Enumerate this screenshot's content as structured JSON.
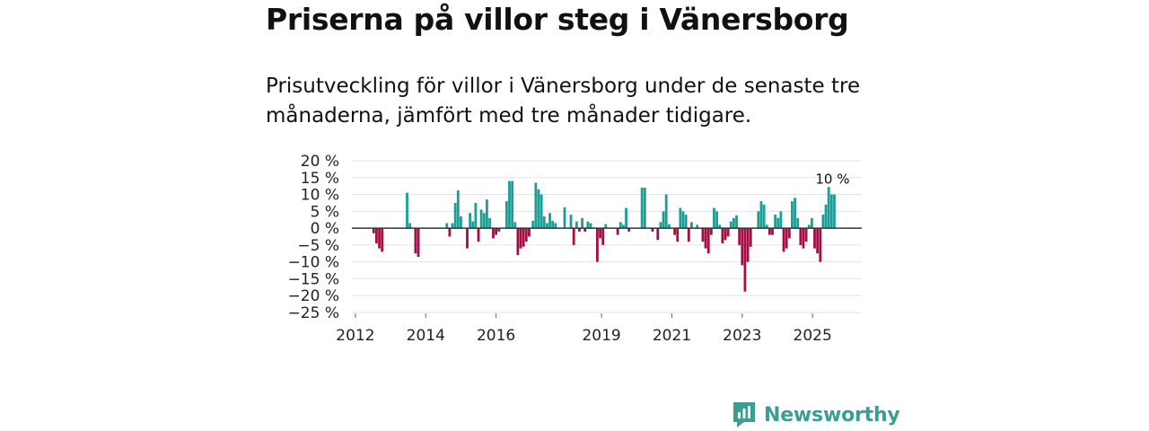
{
  "header": {
    "title": "Priserna på villor steg i Vänersborg",
    "subtitle": "Prisutveckling för villor i Vänersborg under de senaste tre månaderna, jämfört med tre månader tidigare."
  },
  "brand": {
    "name": "Newsworthy"
  },
  "colors": {
    "positive": "#1a9e96",
    "negative": "#a50d44",
    "grid": "#e3e3e3",
    "zero_line": "#333333",
    "brand": "#3a9e95"
  },
  "chart_data": {
    "type": "bar",
    "title": "Priserna på villor steg i Vänersborg",
    "xlabel": "",
    "ylabel": "",
    "ylim": [
      -25,
      20
    ],
    "grid": true,
    "y_ticks": [
      {
        "value": 20,
        "label": "20 %"
      },
      {
        "value": 15,
        "label": "15 %"
      },
      {
        "value": 10,
        "label": "10 %"
      },
      {
        "value": 5,
        "label": "5 %"
      },
      {
        "value": 0,
        "label": "0 %"
      },
      {
        "value": -5,
        "label": "−5 %"
      },
      {
        "value": -10,
        "label": "−10 %"
      },
      {
        "value": -15,
        "label": "−15 %"
      },
      {
        "value": -20,
        "label": "−20 %"
      },
      {
        "value": -25,
        "label": "−25 %"
      }
    ],
    "x_ticks": [
      {
        "value": 2012,
        "label": "2012"
      },
      {
        "value": 2014,
        "label": "2014"
      },
      {
        "value": 2016,
        "label": "2016"
      },
      {
        "value": 2019,
        "label": "2019"
      },
      {
        "value": 2021,
        "label": "2021"
      },
      {
        "value": 2023,
        "label": "2023"
      },
      {
        "value": 2025,
        "label": "2025"
      }
    ],
    "x_range": [
      2011.9,
      2026.4
    ],
    "annotation": {
      "label": "10 %",
      "value": 10
    },
    "series": [
      {
        "name": "Prisutveckling",
        "points": [
          [
            2012.52,
            -1.5
          ],
          [
            2012.6,
            -4.5
          ],
          [
            2012.68,
            -6
          ],
          [
            2012.76,
            -7
          ],
          [
            2013.47,
            10.5
          ],
          [
            2013.55,
            1.5
          ],
          [
            2013.71,
            -7.5
          ],
          [
            2013.79,
            -8.5
          ],
          [
            2014.6,
            1.5
          ],
          [
            2014.68,
            -2.5
          ],
          [
            2014.76,
            1.5
          ],
          [
            2014.84,
            7.5
          ],
          [
            2014.92,
            11.2
          ],
          [
            2015.0,
            3.5
          ],
          [
            2015.18,
            -6
          ],
          [
            2015.26,
            4.5
          ],
          [
            2015.34,
            2
          ],
          [
            2015.42,
            7.5
          ],
          [
            2015.5,
            -4
          ],
          [
            2015.58,
            5.5
          ],
          [
            2015.66,
            4.5
          ],
          [
            2015.74,
            8.5
          ],
          [
            2015.82,
            3
          ],
          [
            2015.92,
            -3
          ],
          [
            2016.0,
            -2
          ],
          [
            2016.08,
            -1
          ],
          [
            2016.3,
            8
          ],
          [
            2016.38,
            14
          ],
          [
            2016.46,
            14
          ],
          [
            2016.54,
            1.8
          ],
          [
            2016.62,
            -8
          ],
          [
            2016.7,
            -6
          ],
          [
            2016.78,
            -5.5
          ],
          [
            2016.86,
            -4
          ],
          [
            2016.94,
            -2.5
          ],
          [
            2017.05,
            2.2
          ],
          [
            2017.13,
            13.5
          ],
          [
            2017.21,
            11.5
          ],
          [
            2017.29,
            10
          ],
          [
            2017.37,
            3.5
          ],
          [
            2017.45,
            1.5
          ],
          [
            2017.53,
            4.5
          ],
          [
            2017.61,
            2.2
          ],
          [
            2017.69,
            1.5
          ],
          [
            2017.95,
            6.2
          ],
          [
            2018.13,
            4
          ],
          [
            2018.21,
            -5
          ],
          [
            2018.29,
            2
          ],
          [
            2018.37,
            -1
          ],
          [
            2018.45,
            3
          ],
          [
            2018.53,
            -1
          ],
          [
            2018.61,
            2
          ],
          [
            2018.69,
            1.5
          ],
          [
            2018.88,
            -10
          ],
          [
            2018.96,
            -3
          ],
          [
            2019.04,
            -5
          ],
          [
            2019.12,
            1.2
          ],
          [
            2019.46,
            -2
          ],
          [
            2019.54,
            1.8
          ],
          [
            2019.62,
            1
          ],
          [
            2019.7,
            6
          ],
          [
            2019.78,
            -1
          ],
          [
            2020.15,
            12
          ],
          [
            2020.23,
            12
          ],
          [
            2020.45,
            -1
          ],
          [
            2020.6,
            -3.5
          ],
          [
            2020.68,
            1.8
          ],
          [
            2020.76,
            5
          ],
          [
            2020.84,
            10
          ],
          [
            2020.92,
            1.2
          ],
          [
            2021.08,
            -2
          ],
          [
            2021.16,
            -4
          ],
          [
            2021.24,
            6
          ],
          [
            2021.32,
            5
          ],
          [
            2021.4,
            4
          ],
          [
            2021.48,
            -4
          ],
          [
            2021.56,
            1.8
          ],
          [
            2021.72,
            1
          ],
          [
            2021.88,
            -4
          ],
          [
            2021.96,
            -6
          ],
          [
            2022.04,
            -7.5
          ],
          [
            2022.12,
            -2
          ],
          [
            2022.2,
            6
          ],
          [
            2022.28,
            5
          ],
          [
            2022.36,
            1
          ],
          [
            2022.44,
            -4.5
          ],
          [
            2022.52,
            -3.5
          ],
          [
            2022.6,
            -2.5
          ],
          [
            2022.68,
            2
          ],
          [
            2022.76,
            3
          ],
          [
            2022.84,
            3.8
          ],
          [
            2022.92,
            -5
          ],
          [
            2023.0,
            -11
          ],
          [
            2023.08,
            -18.8
          ],
          [
            2023.16,
            -10
          ],
          [
            2023.24,
            -5.5
          ],
          [
            2023.46,
            5
          ],
          [
            2023.54,
            8
          ],
          [
            2023.62,
            7
          ],
          [
            2023.7,
            1
          ],
          [
            2023.78,
            -2
          ],
          [
            2023.86,
            -2
          ],
          [
            2023.94,
            4
          ],
          [
            2024.02,
            3
          ],
          [
            2024.1,
            5
          ],
          [
            2024.18,
            -7
          ],
          [
            2024.26,
            -6
          ],
          [
            2024.34,
            -3
          ],
          [
            2024.42,
            8
          ],
          [
            2024.5,
            9
          ],
          [
            2024.58,
            3
          ],
          [
            2024.66,
            -5
          ],
          [
            2024.74,
            -6
          ],
          [
            2024.82,
            -4
          ],
          [
            2024.9,
            1
          ],
          [
            2024.98,
            3
          ],
          [
            2025.06,
            -6
          ],
          [
            2025.14,
            -7.5
          ],
          [
            2025.22,
            -10
          ],
          [
            2025.3,
            4
          ],
          [
            2025.38,
            7
          ],
          [
            2025.46,
            12.2
          ],
          [
            2025.54,
            10
          ],
          [
            2025.62,
            10
          ]
        ]
      }
    ]
  }
}
